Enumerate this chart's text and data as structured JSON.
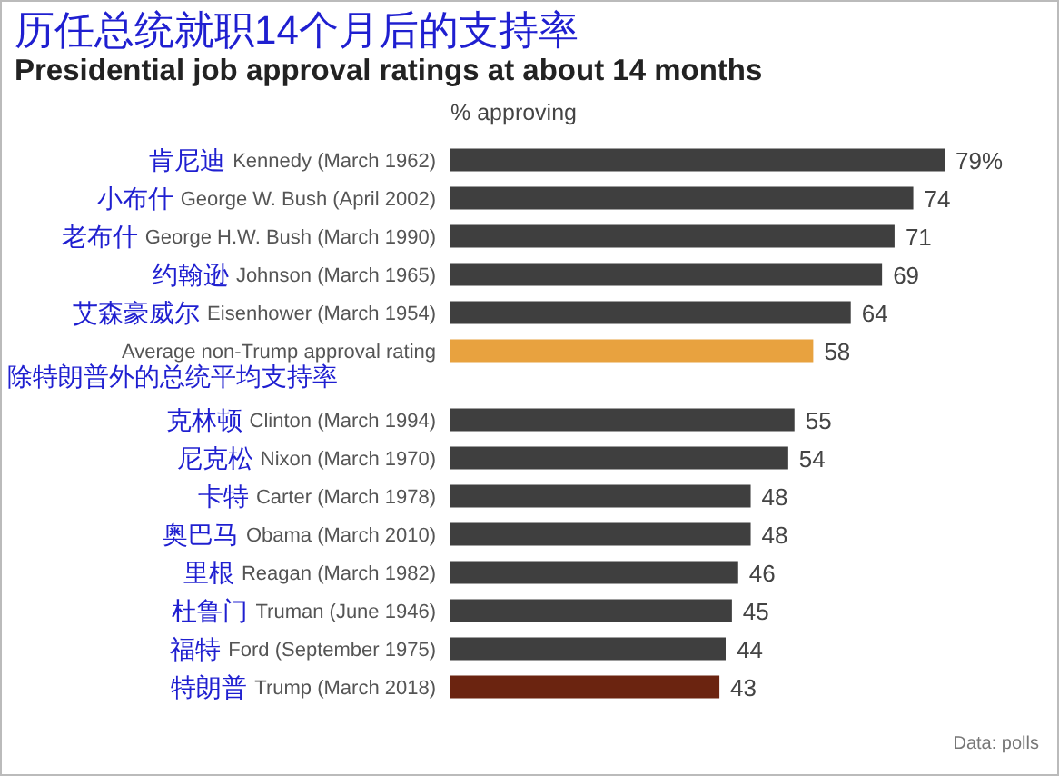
{
  "chart_data": {
    "type": "bar",
    "orientation": "horizontal",
    "title": "历任总统就职14个月后的支持率",
    "subtitle": "Presidential job approval ratings at about 14 months",
    "xlabel": "% approving",
    "categories": [
      "Kennedy (March 1962)",
      "George W. Bush (April 2002)",
      "George H.W. Bush (March 1990)",
      "Johnson (March 1965)",
      "Eisenhower (March 1954)",
      "Average non-Trump approval rating",
      "Clinton (March 1994)",
      "Nixon (March 1970)",
      "Carter (March 1978)",
      "Obama (March 2010)",
      "Reagan (March 1982)",
      "Truman (June 1946)",
      "Ford (September 1975)",
      "Trump (March 2018)"
    ],
    "values": [
      79,
      74,
      71,
      69,
      64,
      58,
      55,
      54,
      48,
      48,
      46,
      45,
      44,
      43
    ],
    "colors": [
      "#3f3f3f",
      "#3f3f3f",
      "#3f3f3f",
      "#3f3f3f",
      "#3f3f3f",
      "#e8a23f",
      "#3f3f3f",
      "#3f3f3f",
      "#3f3f3f",
      "#3f3f3f",
      "#3f3f3f",
      "#3f3f3f",
      "#3f3f3f",
      "#6b2410"
    ],
    "value_labels": [
      "79%",
      "74",
      "71",
      "69",
      "64",
      "58",
      "55",
      "54",
      "48",
      "48",
      "46",
      "45",
      "44",
      "43"
    ],
    "annotations": [
      "肯尼迪",
      "小布什",
      "老布什",
      "约翰逊",
      "艾森豪威尔",
      "除特朗普外的总统平均支持率",
      "克林顿",
      "尼克松",
      "卡特",
      "奥巴马",
      "里根",
      "杜鲁门",
      "福特",
      "特朗普",
      "Data: polls"
    ]
  }
}
